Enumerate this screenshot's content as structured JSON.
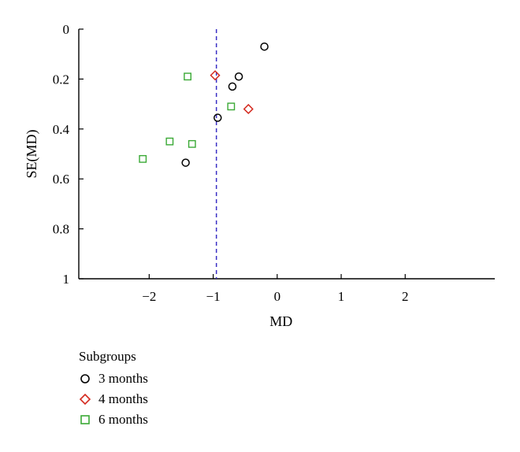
{
  "chart_data": {
    "type": "scatter",
    "title": "",
    "xlabel": "MD",
    "ylabel": "SE(MD)",
    "xlim": [
      -3.1,
      3.4
    ],
    "ylim": [
      1,
      0
    ],
    "y_inverted": true,
    "x_ticks": [
      -2,
      -1,
      0,
      1,
      2
    ],
    "x_tick_labels": [
      "−2",
      "−1",
      "0",
      "1",
      "2"
    ],
    "y_ticks": [
      0,
      0.2,
      0.4,
      0.6,
      0.8,
      1
    ],
    "y_tick_labels": [
      "0",
      "0.2",
      "0.4",
      "0.6",
      "0.8",
      "1"
    ],
    "reference_line": {
      "x": -0.95,
      "style": "dashed",
      "color": "#3a2fc4"
    },
    "grid": false,
    "legend_placement": "bottom-left",
    "legend_title": "Subgroups",
    "series": [
      {
        "name": "3 months",
        "marker": "circle",
        "color": "#000000",
        "points": [
          [
            -0.2,
            0.07
          ],
          [
            -0.6,
            0.19
          ],
          [
            -0.7,
            0.23
          ],
          [
            -0.93,
            0.355
          ],
          [
            -1.43,
            0.535
          ]
        ]
      },
      {
        "name": "4 months",
        "marker": "diamond",
        "color": "#d42a1f",
        "points": [
          [
            -0.97,
            0.185
          ],
          [
            -0.45,
            0.32
          ]
        ]
      },
      {
        "name": "6 months",
        "marker": "square",
        "color": "#3aa935",
        "points": [
          [
            -1.4,
            0.19
          ],
          [
            -0.72,
            0.31
          ],
          [
            -1.68,
            0.45
          ],
          [
            -1.33,
            0.46
          ],
          [
            -2.1,
            0.52
          ]
        ]
      }
    ]
  }
}
